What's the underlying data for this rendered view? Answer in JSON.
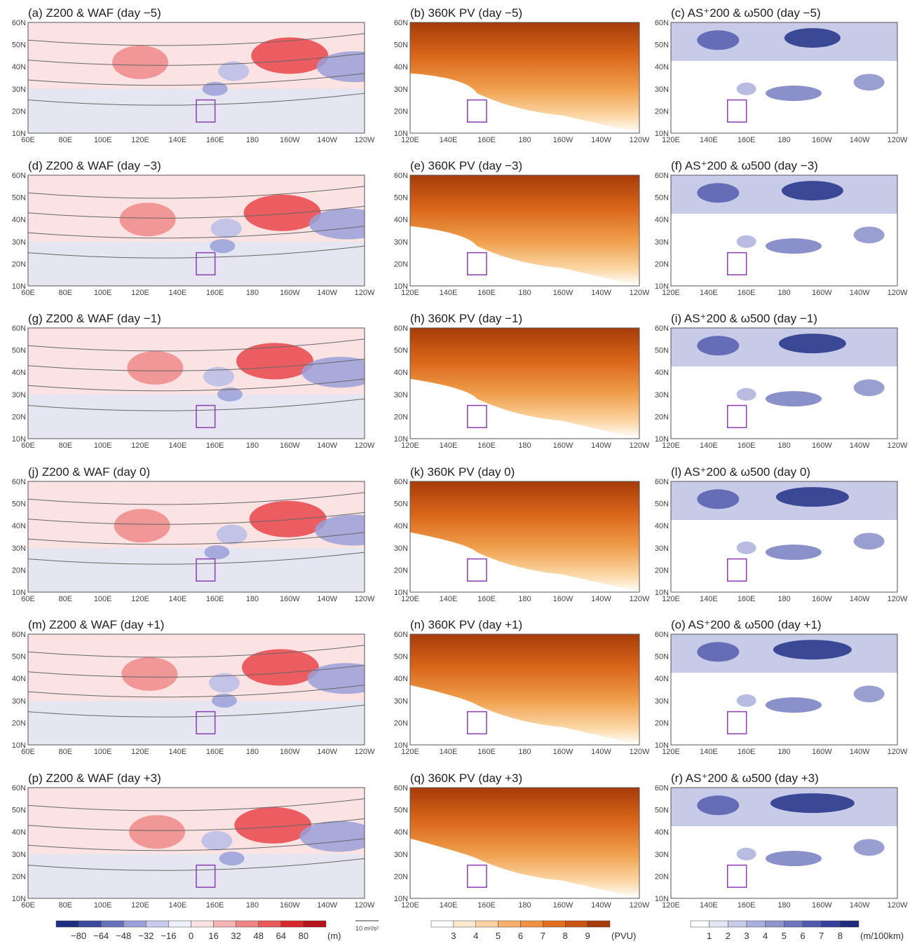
{
  "panels": [
    {
      "title": "(a) Z200 & WAF (day −5)"
    },
    {
      "title": "(b) 360K PV (day −5)"
    },
    {
      "title": "(c) AS⁺200 & ω500 (day −5)"
    },
    {
      "title": "(d) Z200 & WAF (day −3)"
    },
    {
      "title": "(e) 360K PV (day −3)"
    },
    {
      "title": "(f) AS⁺200 & ω500 (day −3)"
    },
    {
      "title": "(g) Z200 & WAF (day −1)"
    },
    {
      "title": "(h) 360K PV (day −1)"
    },
    {
      "title": "(i) AS⁺200 & ω500 (day −1)"
    },
    {
      "title": "(j) Z200 & WAF (day 0)"
    },
    {
      "title": "(k) 360K PV (day 0)"
    },
    {
      "title": "(l) AS⁺200 & ω500 (day 0)"
    },
    {
      "title": "(m) Z200 & WAF (day +1)"
    },
    {
      "title": "(n) 360K PV (day +1)"
    },
    {
      "title": "(o) AS⁺200 & ω500 (day +1)"
    },
    {
      "title": "(p) Z200 & WAF (day +3)"
    },
    {
      "title": "(q) 360K PV (day +3)"
    },
    {
      "title": "(r) AS⁺200 & ω500 (day +3)"
    }
  ],
  "axes": {
    "lat_labels": [
      "60N",
      "50N",
      "40N",
      "30N",
      "20N",
      "10N"
    ],
    "lon_labels_wide": [
      "60E",
      "80E",
      "100E",
      "120E",
      "140E",
      "160E",
      "180",
      "160W",
      "140W",
      "120W"
    ],
    "lon_labels_pacific": [
      "120E",
      "140E",
      "160E",
      "180",
      "160W",
      "140W",
      "120W"
    ]
  },
  "colorbars": [
    {
      "labels": [
        "−80",
        "−64",
        "−48",
        "−32",
        "−16",
        "0",
        "16",
        "32",
        "48",
        "64",
        "80"
      ],
      "unit": "(m)"
    },
    {
      "labels": [
        "3",
        "4",
        "5",
        "6",
        "7",
        "8",
        "9"
      ],
      "unit": "(PVU)"
    },
    {
      "labels": [
        "1",
        "2",
        "3",
        "4",
        "5",
        "6",
        "7",
        "8"
      ],
      "unit": "(m/100km)"
    }
  ],
  "vector_reference": "10 m²/s²"
}
